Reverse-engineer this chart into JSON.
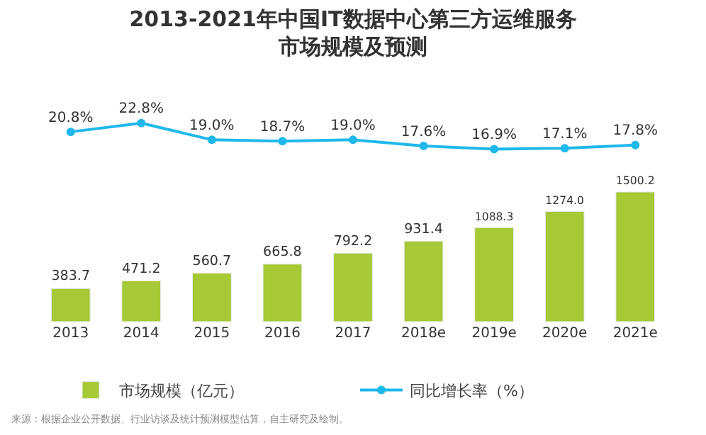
{
  "chart_data": [
    {
      "type": "line",
      "title": "2013-2021年中国IT数据中心第三方运维服务市场规模及预测",
      "categories": [
        "2013",
        "2014",
        "2015",
        "2016",
        "2017",
        "2018e",
        "2019e",
        "2020e",
        "2021e"
      ],
      "series": [
        {
          "name": "同比增长率（%）",
          "color": "#1fb8ea",
          "values": [
            20.8,
            22.8,
            19.0,
            18.7,
            19.0,
            17.6,
            16.9,
            17.1,
            17.8
          ],
          "value_labels": [
            "20.8%",
            "22.8%",
            "19.0%",
            "18.7%",
            "19.0%",
            "17.6%",
            "16.9%",
            "17.1%",
            "17.8%"
          ]
        }
      ],
      "marker": "circle",
      "data_labels": true,
      "tick_labels": false,
      "grid": false,
      "legend": "bottom"
    },
    {
      "type": "bar",
      "categories": [
        "2013",
        "2014",
        "2015",
        "2016",
        "2017",
        "2018e",
        "2019e",
        "2020e",
        "2021e"
      ],
      "series": [
        {
          "name": "市场规模（亿元）",
          "color": "#a6c935",
          "values": [
            383.7,
            471.2,
            560.7,
            665.8,
            792.2,
            931.4,
            1088.3,
            1274.0,
            1500.2
          ],
          "value_labels": [
            "383.7",
            "471.2",
            "560.7",
            "665.8",
            "792.2",
            "931.4",
            "1088.3",
            "1274.0",
            "1500.2"
          ]
        }
      ],
      "data_labels": true,
      "tick_labels": "x",
      "grid": false,
      "legend": "bottom",
      "annotations": [
        "来源：根据企业公开数据、行业访谈及统计预测模型估算，自主研究及绘制。"
      ]
    }
  ]
}
